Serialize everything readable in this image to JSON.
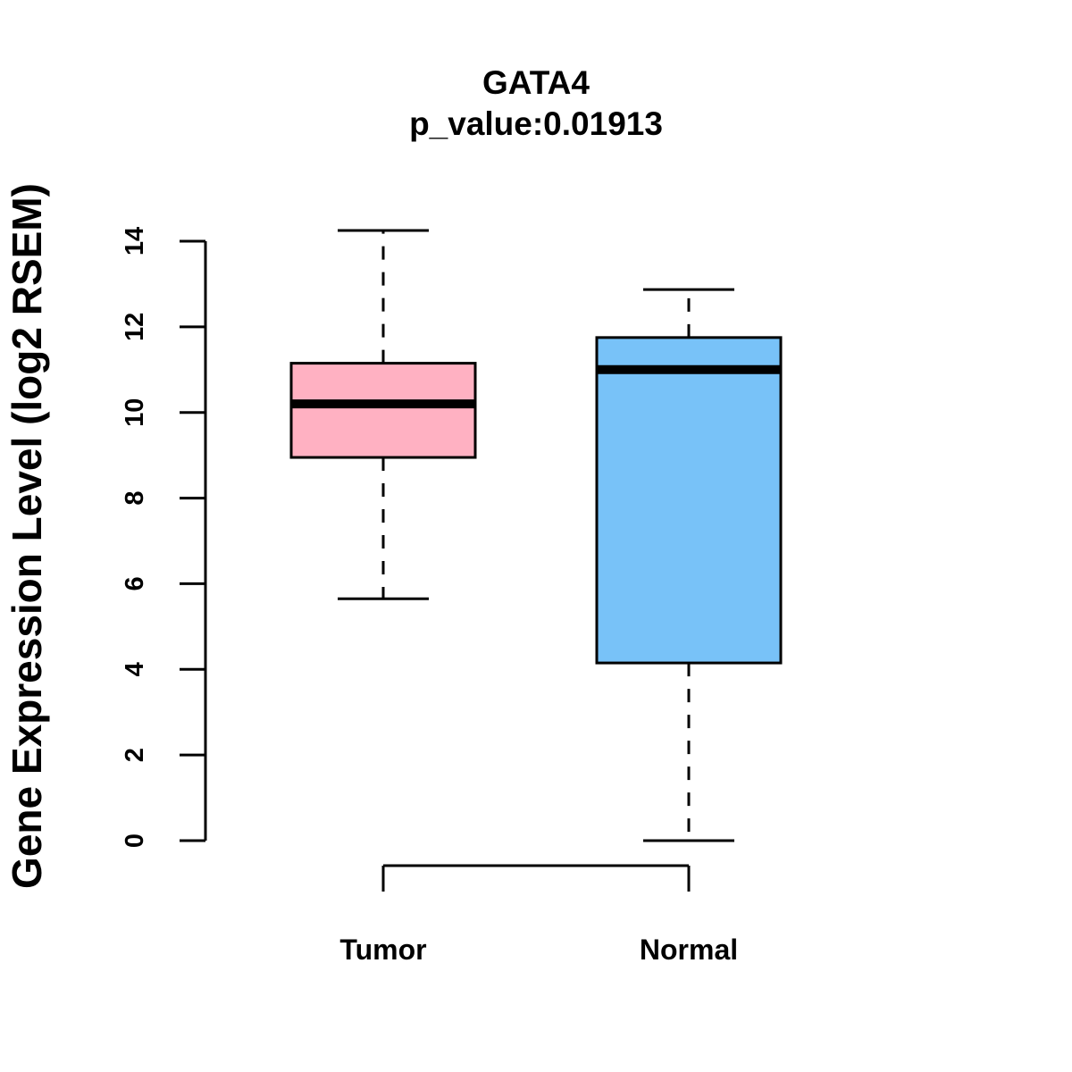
{
  "chart_data": {
    "type": "boxplot",
    "title": "GATA4",
    "subtitle": "p_value:0.01913",
    "ylabel": "Gene Expression Level (log2 RSEM)",
    "ylim": [
      0,
      14
    ],
    "yticks": [
      0,
      2,
      4,
      6,
      8,
      10,
      12,
      14
    ],
    "grid": false,
    "categories": [
      "Tumor",
      "Normal"
    ],
    "boxes": [
      {
        "category": "Tumor",
        "min": 5.65,
        "q1": 8.95,
        "median": 10.2,
        "q3": 11.15,
        "max": 14.25,
        "color": "#FFB1C2"
      },
      {
        "category": "Normal",
        "min": 0.0,
        "q1": 4.15,
        "median": 11.0,
        "q3": 11.75,
        "max": 12.87,
        "color": "#78C2F8"
      }
    ]
  }
}
